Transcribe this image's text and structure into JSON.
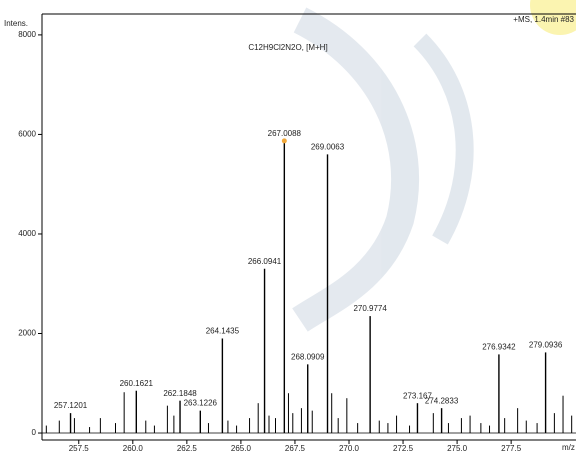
{
  "chart_data": {
    "type": "spectrum",
    "title": "C12H9Cl2N2O, [M+H]",
    "annotation": "+MS, 1.4min #83",
    "y_label": "Intens.",
    "x_label": "m/z",
    "x": [
      257.1201,
      260.1621,
      262.1848,
      263.1226,
      264.1435,
      266.0941,
      267.0088,
      268.0909,
      269.0063,
      270.9774,
      273.167,
      274.2833,
      276.9342,
      279.0936
    ],
    "values": [
      400,
      850,
      650,
      450,
      1900,
      3300,
      5870,
      1380,
      5600,
      2350,
      600,
      500,
      1580,
      1620
    ],
    "minor_peaks": {
      "x": [
        256.0,
        256.6,
        257.3,
        258.0,
        258.5,
        259.2,
        259.6,
        260.6,
        261.0,
        261.6,
        261.9,
        263.5,
        264.4,
        264.8,
        265.4,
        265.8,
        266.3,
        266.6,
        267.2,
        267.4,
        267.8,
        268.3,
        269.2,
        269.5,
        269.9,
        270.4,
        271.4,
        271.8,
        272.2,
        272.8,
        273.9,
        274.6,
        275.2,
        275.6,
        276.1,
        276.5,
        277.2,
        277.8,
        278.2,
        278.7,
        279.5,
        279.9,
        280.3
      ],
      "values": [
        150,
        250,
        300,
        120,
        300,
        200,
        820,
        250,
        150,
        550,
        350,
        200,
        250,
        150,
        300,
        600,
        350,
        300,
        800,
        400,
        500,
        450,
        800,
        300,
        700,
        200,
        250,
        200,
        350,
        150,
        400,
        200,
        300,
        350,
        200,
        150,
        300,
        500,
        250,
        200,
        400,
        750,
        350
      ]
    },
    "color": "#000000",
    "highlight_index": 6,
    "highlight_color": "#f2a93b",
    "xlim": [
      255.8,
      280.5
    ],
    "ylim": [
      -140,
      8420
    ],
    "xticks": [
      257.5,
      {
        "value": 260,
        "label": "260.0"
      },
      262.5,
      {
        "value": 265,
        "label": "265.0"
      },
      267.5,
      {
        "value": 270,
        "label": "270.0"
      },
      272.5,
      {
        "value": 275,
        "label": "275.0"
      },
      277.5
    ],
    "yticks": [
      0,
      2000,
      4000,
      6000,
      8000
    ]
  }
}
